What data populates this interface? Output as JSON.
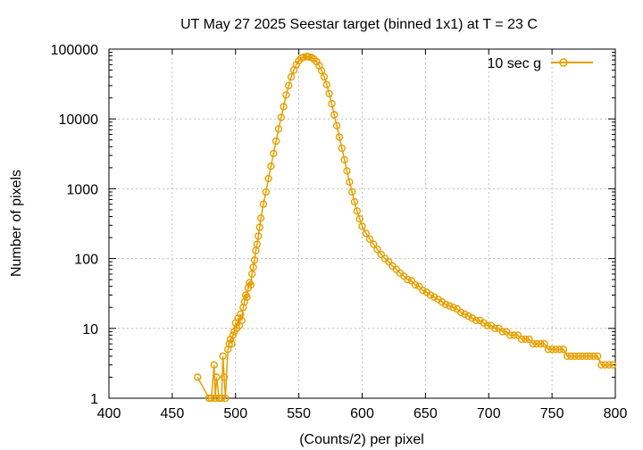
{
  "chart_data": {
    "type": "line",
    "title": "UT May 27 2025 Seestar target (binned 1x1) at T = 23 C",
    "xlabel": "(Counts/2) per pixel",
    "ylabel": "Number of pixels",
    "xlim": [
      400,
      800
    ],
    "ylim": [
      1,
      100000
    ],
    "yscale": "log",
    "xticks": [
      400,
      450,
      500,
      550,
      600,
      650,
      700,
      750,
      800
    ],
    "xtick_labels": [
      "400",
      "450",
      "500",
      "550",
      "600",
      "650",
      "700",
      "750",
      "800"
    ],
    "yticks": [
      1,
      10,
      100,
      1000,
      10000,
      100000
    ],
    "ytick_labels": [
      "1",
      "10",
      "100",
      "1000",
      "10000",
      "100000"
    ],
    "grid": true,
    "legend_position": "top-right",
    "series_color": "#e69f00",
    "marker": "open-circle",
    "series": [
      {
        "name": "10 sec g",
        "x": [
          470,
          479,
          481,
          483,
          484,
          485,
          487,
          489,
          490,
          491,
          492,
          494,
          495,
          496,
          497,
          498,
          499,
          500,
          501,
          502,
          503,
          504,
          505,
          506,
          507,
          508,
          509,
          510,
          511,
          512,
          513,
          514,
          515,
          516,
          517,
          518,
          519,
          520,
          522,
          524,
          526,
          528,
          530,
          532,
          534,
          536,
          538,
          540,
          542,
          544,
          546,
          548,
          550,
          552,
          554,
          556,
          557,
          558,
          560,
          562,
          564,
          566,
          568,
          570,
          572,
          574,
          576,
          578,
          580,
          582,
          584,
          586,
          588,
          590,
          592,
          594,
          596,
          598,
          600,
          603,
          606,
          609,
          612,
          615,
          618,
          621,
          624,
          627,
          630,
          633,
          636,
          639,
          642,
          645,
          648,
          651,
          654,
          657,
          660,
          663,
          666,
          669,
          672,
          675,
          678,
          681,
          684,
          687,
          690,
          693,
          696,
          699,
          702,
          705,
          708,
          711,
          714,
          717,
          720,
          723,
          726,
          729,
          732,
          735,
          738,
          741,
          744,
          747,
          750,
          753,
          756,
          759,
          762,
          765,
          768,
          771,
          774,
          777,
          780,
          783,
          786,
          789,
          792,
          795,
          798
        ],
        "values": [
          2,
          1,
          1,
          3,
          1,
          2,
          1,
          1,
          4,
          2,
          1,
          5,
          6,
          7,
          6,
          8,
          9,
          12,
          10,
          14,
          11,
          16,
          13,
          20,
          24,
          30,
          28,
          38,
          45,
          42,
          60,
          75,
          95,
          130,
          160,
          210,
          280,
          380,
          600,
          900,
          1400,
          2100,
          3200,
          4800,
          7200,
          10500,
          15000,
          22000,
          30000,
          40000,
          50000,
          60000,
          68000,
          74000,
          77000,
          78000,
          78000,
          77500,
          76000,
          72000,
          66000,
          58000,
          49000,
          40000,
          31000,
          23000,
          16500,
          11500,
          8000,
          5500,
          3800,
          2600,
          1800,
          1250,
          900,
          650,
          480,
          370,
          290,
          230,
          190,
          160,
          135,
          115,
          100,
          90,
          78,
          70,
          62,
          56,
          50,
          48,
          42,
          40,
          35,
          33,
          30,
          28,
          26,
          24,
          22,
          21,
          20,
          19,
          17,
          16,
          15,
          14,
          13,
          13,
          12,
          11,
          11,
          10,
          10,
          9,
          9,
          8,
          8,
          8,
          7,
          7,
          7,
          6,
          6,
          6,
          6,
          5,
          5,
          5,
          5,
          5,
          4,
          4,
          4,
          4,
          4,
          4,
          4,
          4,
          4,
          3,
          3,
          3,
          3
        ],
        "noise_factors": [
          1,
          1,
          1,
          1,
          1,
          1,
          1,
          1,
          1,
          1,
          1,
          1,
          1,
          1,
          1,
          1,
          1,
          1,
          1,
          1,
          1,
          1,
          1,
          1,
          1,
          1,
          1,
          1,
          1,
          1,
          1,
          1,
          1,
          1,
          1,
          1,
          1,
          1,
          1,
          1,
          1,
          1,
          1,
          1,
          1,
          1,
          1,
          1,
          1,
          1,
          1,
          1,
          1,
          1,
          1,
          1,
          1,
          1,
          1,
          1,
          1,
          1,
          1,
          1,
          1,
          1,
          1,
          1,
          1,
          1,
          1,
          1,
          1,
          1,
          1,
          1,
          1,
          1,
          1,
          1,
          1,
          1,
          1,
          1,
          1,
          1,
          1,
          1,
          1,
          1,
          1,
          1,
          1,
          1,
          1,
          1,
          1,
          1,
          1,
          1,
          1,
          1,
          1,
          1,
          1,
          1,
          1,
          1,
          1,
          1,
          1,
          1,
          1,
          1,
          1,
          1,
          1,
          1,
          1,
          1,
          1,
          1,
          1,
          1,
          1,
          1,
          1,
          1,
          1,
          1,
          1,
          1,
          1,
          1,
          1,
          1,
          1,
          1,
          1,
          1,
          1,
          1,
          1,
          1,
          1
        ]
      }
    ]
  }
}
